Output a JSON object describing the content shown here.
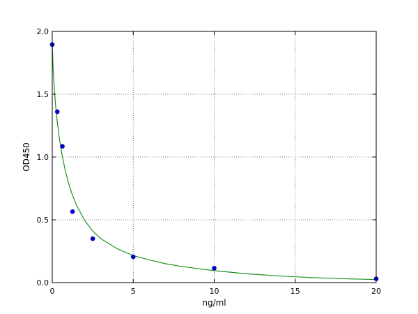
{
  "chart_data": {
    "type": "scatter",
    "title": "",
    "xlabel": "ng/ml",
    "ylabel": "OD450",
    "xlim": [
      0,
      20
    ],
    "ylim": [
      0,
      2.0
    ],
    "xticks": [
      0,
      5,
      10,
      15,
      20
    ],
    "xtick_labels": [
      "0",
      "5",
      "10",
      "15",
      "20"
    ],
    "yticks": [
      0,
      0.5,
      1.0,
      1.5,
      2.0
    ],
    "ytick_labels": [
      "0.0",
      "0.5",
      "1.0",
      "1.5",
      "2.0"
    ],
    "grid": true,
    "series": [
      {
        "kind": "points",
        "color": "#0000bf",
        "x": [
          0,
          0.3125,
          0.625,
          1.25,
          2.5,
          5,
          10,
          20
        ],
        "y": [
          1.895,
          1.36,
          1.085,
          0.565,
          0.35,
          0.205,
          0.115,
          0.03
        ]
      },
      {
        "kind": "fit-curve",
        "color": "#1f8f1f",
        "x": [
          0,
          0.05,
          0.1,
          0.2,
          0.3,
          0.45,
          0.6,
          0.8,
          1.0,
          1.25,
          1.5,
          2.0,
          2.5,
          3.0,
          4.0,
          5.0,
          6.0,
          7.0,
          8.0,
          10.0,
          12.0,
          14.0,
          16.0,
          18.0,
          20.0
        ],
        "y": [
          1.9,
          1.72,
          1.6,
          1.42,
          1.29,
          1.14,
          1.02,
          0.895,
          0.795,
          0.695,
          0.615,
          0.495,
          0.41,
          0.35,
          0.27,
          0.215,
          0.18,
          0.15,
          0.128,
          0.095,
          0.07,
          0.053,
          0.04,
          0.031,
          0.024
        ]
      }
    ]
  }
}
